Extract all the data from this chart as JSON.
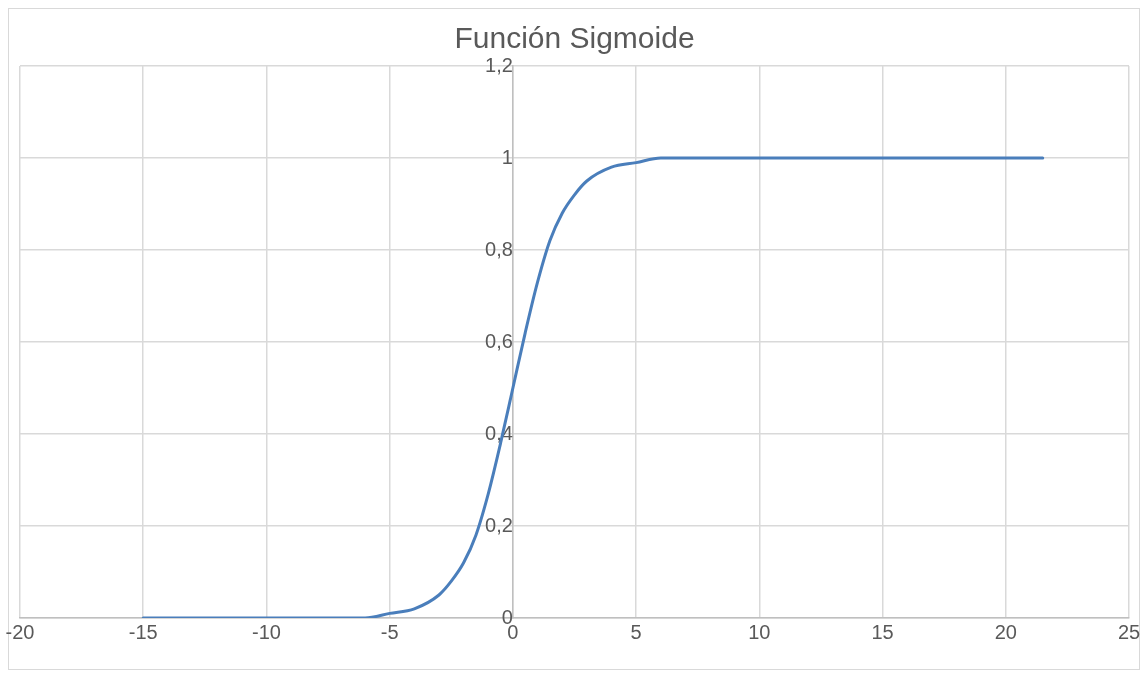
{
  "chart_data": {
    "type": "line",
    "title": "Función Sigmoide",
    "x": [
      -15,
      -10,
      -8,
      -6,
      -5,
      -4,
      -3,
      -2.5,
      -2,
      -1.5,
      -1,
      -0.5,
      0,
      0.5,
      1,
      1.5,
      2,
      2.5,
      3,
      4,
      5,
      6,
      8,
      10,
      15,
      21.5
    ],
    "series": [
      {
        "color": "#4a7ebb",
        "values": [
          0,
          0,
          0,
          0,
          0.01,
          0.02,
          0.05,
          0.08,
          0.12,
          0.18,
          0.27,
          0.38,
          0.5,
          0.62,
          0.73,
          0.82,
          0.88,
          0.92,
          0.95,
          0.98,
          0.99,
          1,
          1,
          1,
          1,
          1
        ]
      }
    ],
    "xlim": [
      -20,
      25
    ],
    "xticks": [
      -20,
      -15,
      -10,
      -5,
      0,
      5,
      10,
      15,
      20,
      25
    ],
    "ylim": [
      0,
      1.2
    ],
    "yticks": [
      0,
      {
        "value": 0.2,
        "label": "0,2"
      },
      {
        "value": 0.4,
        "label": "0,4"
      },
      {
        "value": 0.6,
        "label": "0,6"
      },
      {
        "value": 0.8,
        "label": "0,8"
      },
      1,
      {
        "value": 1.2,
        "label": "1,2"
      }
    ],
    "grid": true,
    "legend": false,
    "marker": "none",
    "line_style": "solid"
  }
}
